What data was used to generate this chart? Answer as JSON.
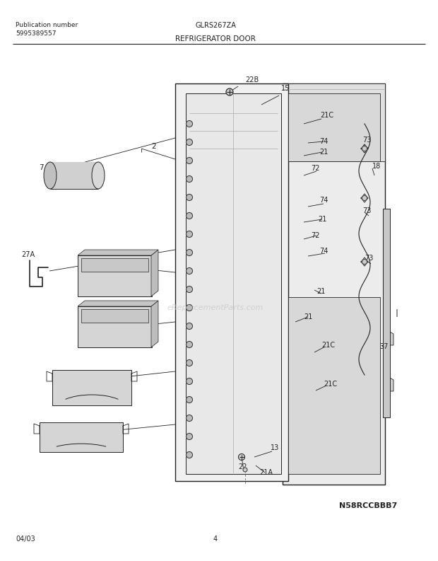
{
  "title": "REFRIGERATOR DOOR",
  "model": "GLRS267ZA",
  "pub_label": "Publication number",
  "pub_number": "5995389557",
  "diagram_code": "N58RCCBBB7",
  "date": "04/03",
  "page": "4",
  "bg_color": "#ffffff",
  "line_color": "#222222",
  "label_color": "#222222",
  "watermark": "eReplacementParts.com"
}
